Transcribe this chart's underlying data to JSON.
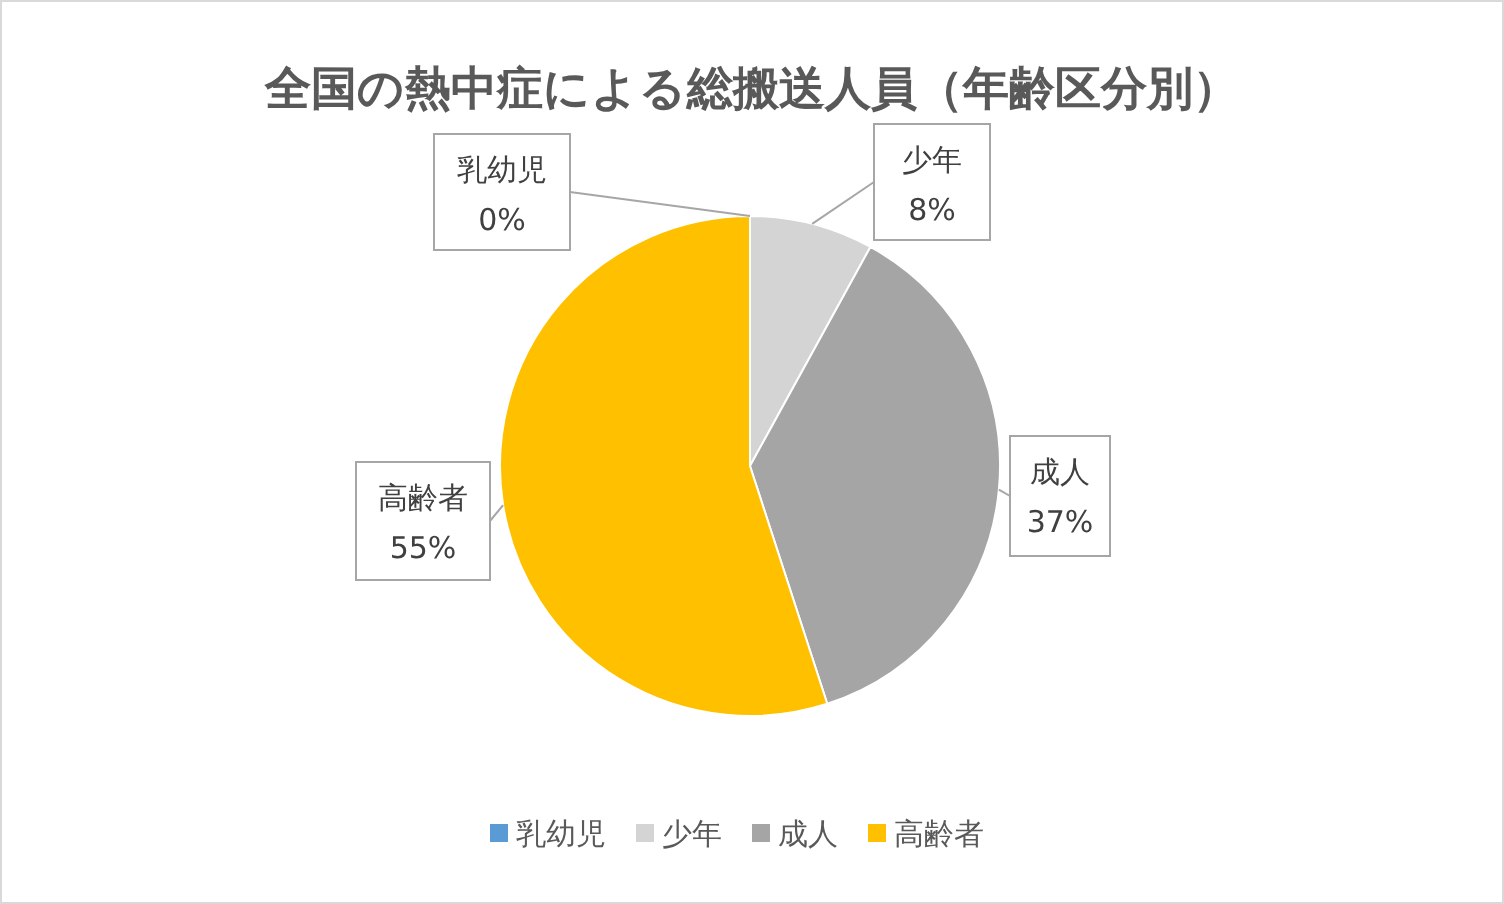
{
  "chart_data": {
    "type": "pie",
    "title": "全国の熱中症による総搬送人員（年齢区分別）",
    "categories": [
      "乳幼児",
      "少年",
      "成人",
      "高齢者"
    ],
    "values": [
      0,
      8,
      37,
      55
    ],
    "colors": [
      "#5b9bd5",
      "#d4d4d4",
      "#a5a5a5",
      "#ffc000"
    ],
    "value_labels": [
      "0%",
      "8%",
      "37%",
      "55%"
    ],
    "legend": "bottom"
  }
}
